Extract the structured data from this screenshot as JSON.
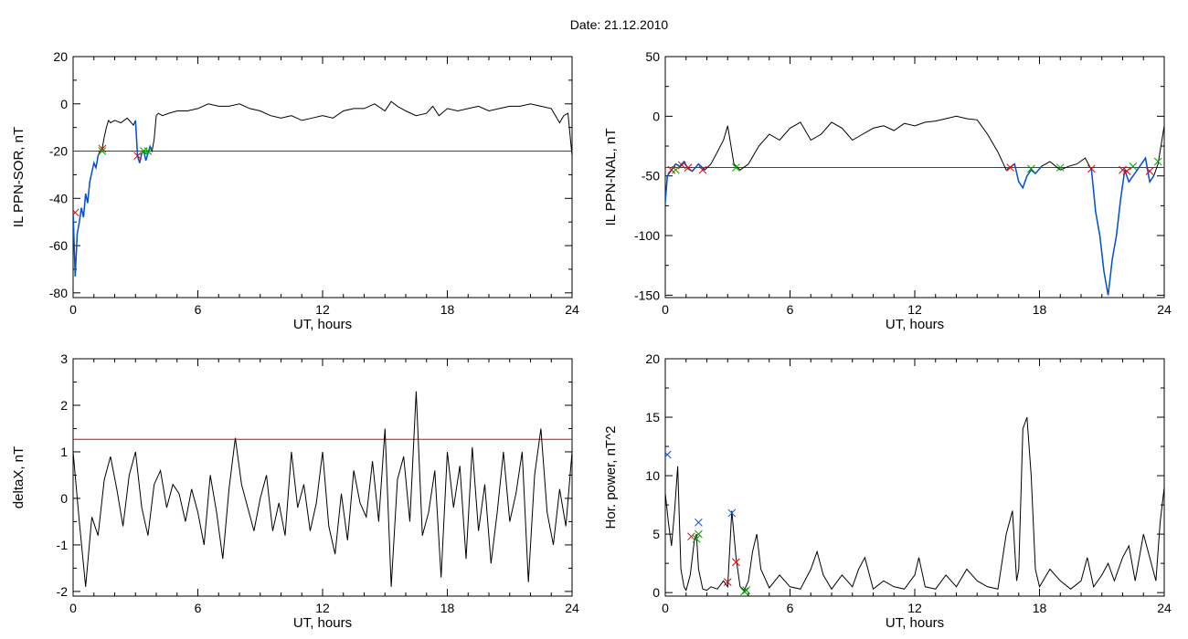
{
  "figure": {
    "title": "Date:  21.12.2010"
  },
  "colors": {
    "threshold": "#e00000",
    "trace": "#000000",
    "highlight": "#0050e0",
    "marker_red": "#e00000",
    "marker_green": "#00a000",
    "marker_blue": "#0050e0"
  },
  "chart_data": [
    {
      "type": "line",
      "ylabel": "IL PPN-SOR, nT",
      "xlabel": "UT, hours",
      "xlim": [
        0,
        24
      ],
      "ylim": [
        -82,
        20
      ],
      "xticks": [
        "0",
        "6",
        "12",
        "18",
        "24"
      ],
      "xtick_values": [
        0,
        6,
        12,
        18,
        24
      ],
      "yticks": [
        "20",
        "0",
        "-20",
        "-40",
        "-60",
        "-80"
      ],
      "ytick_values": [
        20,
        0,
        -20,
        -40,
        -60,
        -80
      ],
      "threshold": -20,
      "series": [
        {
          "values_x": [
            0,
            0.1,
            0.2,
            0.3,
            0.4,
            0.5,
            0.6,
            0.7,
            0.8,
            0.9,
            1.0,
            1.1,
            1.2,
            1.3,
            1.4,
            1.5,
            1.6,
            1.7,
            1.8,
            2.0,
            2.3,
            2.6,
            2.9,
            3.0,
            3.1,
            3.2,
            3.3,
            3.4,
            3.5,
            3.6,
            3.7,
            3.8,
            3.9,
            4.0,
            4.1,
            4.3,
            4.6,
            5,
            5.5,
            6,
            6.5,
            7,
            7.5,
            8,
            8.5,
            9,
            9.5,
            10,
            10.5,
            11,
            11.5,
            12,
            12.5,
            13,
            13.5,
            14,
            14.5,
            15,
            15.3,
            15.6,
            16,
            16.5,
            17,
            17.3,
            17.6,
            18,
            18.5,
            19,
            19.5,
            20,
            20.5,
            21,
            21.5,
            22,
            22.5,
            23,
            23.2,
            23.4,
            23.6,
            23.8,
            24
          ],
          "values_y": [
            -46,
            -73,
            -55,
            -50,
            -44,
            -48,
            -38,
            -42,
            -33,
            -29,
            -25,
            -27,
            -22,
            -20,
            -19,
            -14,
            -10,
            -7,
            -8,
            -7,
            -8,
            -6,
            -9,
            -7,
            -22,
            -25,
            -21,
            -20,
            -24,
            -21,
            -18,
            -20,
            -15,
            -5,
            -4,
            -5,
            -4,
            -3,
            -3,
            -2,
            0,
            -1,
            -1,
            0,
            -2,
            -3,
            -5,
            -6,
            -5,
            -7,
            -6,
            -5,
            -6,
            -3,
            -2,
            -2,
            0,
            -3,
            1,
            -1,
            -3,
            -5,
            -4,
            -1,
            -5,
            -2,
            -3,
            -2,
            -1,
            -3,
            -2,
            -1,
            -1,
            0,
            -1,
            -2,
            -5,
            -8,
            -5,
            -4,
            -22
          ]
        }
      ],
      "highlights": [
        {
          "x": [
            0,
            0.1,
            0.2,
            0.3,
            0.4,
            0.5,
            0.6,
            0.7,
            0.8,
            0.9,
            1.0,
            1.1,
            1.2,
            1.3,
            1.4
          ],
          "y": [
            -46,
            -73,
            -55,
            -50,
            -44,
            -48,
            -38,
            -42,
            -33,
            -29,
            -25,
            -27,
            -22,
            -20,
            -19
          ]
        },
        {
          "x": [
            3.0,
            3.1,
            3.2,
            3.3,
            3.4,
            3.5,
            3.6,
            3.7,
            3.8
          ],
          "y": [
            -7,
            -22,
            -25,
            -21,
            -20,
            -24,
            -21,
            -18,
            -20
          ]
        }
      ],
      "markers": [
        {
          "x": 0.1,
          "y": -46,
          "color": "red"
        },
        {
          "x": 1.4,
          "y": -19,
          "color": "red"
        },
        {
          "x": 1.4,
          "y": -20,
          "color": "green"
        },
        {
          "x": 3.1,
          "y": -22,
          "color": "red"
        },
        {
          "x": 3.4,
          "y": -20,
          "color": "green"
        },
        {
          "x": 3.6,
          "y": -20,
          "color": "green"
        }
      ]
    },
    {
      "type": "line",
      "ylabel": "IL PPN-NAL, nT",
      "xlabel": "UT, hours",
      "xlim": [
        0,
        24
      ],
      "ylim": [
        -152,
        50
      ],
      "xticks": [
        "0",
        "6",
        "12",
        "18",
        "24"
      ],
      "xtick_values": [
        0,
        6,
        12,
        18,
        24
      ],
      "yticks": [
        "50",
        "0",
        "-50",
        "-100",
        "-150"
      ],
      "ytick_values": [
        50,
        0,
        -50,
        -100,
        -150
      ],
      "threshold": -43,
      "series": [
        {
          "values_x": [
            0,
            0.1,
            0.3,
            0.5,
            0.7,
            0.9,
            1.1,
            1.3,
            1.6,
            1.9,
            2.2,
            2.5,
            2.8,
            3.0,
            3.3,
            3.6,
            4.0,
            4.5,
            5,
            5.5,
            6,
            6.5,
            7,
            7.5,
            8,
            8.5,
            9,
            9.5,
            10,
            10.5,
            11,
            11.5,
            12,
            12.5,
            13,
            13.5,
            14,
            14.5,
            15,
            15.5,
            16,
            16.4,
            16.8,
            17.0,
            17.2,
            17.4,
            17.6,
            17.8,
            18.1,
            18.5,
            19,
            19.4,
            19.8,
            20.2,
            20.5,
            20.7,
            20.9,
            21.1,
            21.3,
            21.5,
            21.7,
            21.9,
            22.1,
            22.3,
            22.5,
            22.7,
            22.9,
            23.1,
            23.3,
            23.5,
            23.7,
            24
          ],
          "values_y": [
            -72,
            -50,
            -45,
            -40,
            -42,
            -38,
            -44,
            -46,
            -40,
            -45,
            -40,
            -30,
            -20,
            -8,
            -40,
            -45,
            -40,
            -25,
            -15,
            -20,
            -10,
            -5,
            -20,
            -15,
            -5,
            -10,
            -20,
            -15,
            -10,
            -8,
            -12,
            -6,
            -8,
            -5,
            -4,
            -2,
            0,
            -2,
            -3,
            -15,
            -30,
            -45,
            -40,
            -55,
            -60,
            -50,
            -45,
            -48,
            -42,
            -38,
            -45,
            -42,
            -40,
            -35,
            -45,
            -80,
            -100,
            -130,
            -150,
            -120,
            -100,
            -70,
            -45,
            -55,
            -50,
            -45,
            -40,
            -35,
            -55,
            -50,
            -40,
            -8
          ]
        }
      ],
      "highlights": [
        {
          "x": [
            0,
            0.1,
            0.3,
            0.5,
            0.7,
            0.9,
            1.1,
            1.3,
            1.6,
            1.9
          ],
          "y": [
            -72,
            -50,
            -45,
            -40,
            -42,
            -38,
            -44,
            -46,
            -40,
            -45
          ]
        },
        {
          "x": [
            16.4,
            16.8,
            17.0,
            17.2,
            17.4,
            17.6,
            17.8,
            18.1
          ],
          "y": [
            -45,
            -40,
            -55,
            -60,
            -50,
            -45,
            -48,
            -42
          ]
        },
        {
          "x": [
            20.5,
            20.7,
            20.9,
            21.1,
            21.3,
            21.5,
            21.7,
            21.9,
            22.1,
            22.3,
            22.5,
            22.7,
            22.9,
            23.1,
            23.3,
            23.5
          ],
          "y": [
            -45,
            -80,
            -100,
            -130,
            -150,
            -120,
            -100,
            -70,
            -45,
            -55,
            -50,
            -45,
            -40,
            -35,
            -55,
            -50
          ]
        }
      ],
      "markers": [
        {
          "x": 0.3,
          "y": -45,
          "color": "red"
        },
        {
          "x": 0.5,
          "y": -45,
          "color": "green"
        },
        {
          "x": 0.8,
          "y": -41,
          "color": "red"
        },
        {
          "x": 1.1,
          "y": -43,
          "color": "red"
        },
        {
          "x": 1.8,
          "y": -45,
          "color": "red"
        },
        {
          "x": 3.4,
          "y": -43,
          "color": "green"
        },
        {
          "x": 16.6,
          "y": -43,
          "color": "red"
        },
        {
          "x": 17.6,
          "y": -44,
          "color": "green"
        },
        {
          "x": 19.0,
          "y": -43,
          "color": "green"
        },
        {
          "x": 20.5,
          "y": -44,
          "color": "red"
        },
        {
          "x": 22.0,
          "y": -45,
          "color": "red"
        },
        {
          "x": 22.2,
          "y": -46,
          "color": "red"
        },
        {
          "x": 22.5,
          "y": -42,
          "color": "green"
        },
        {
          "x": 23.3,
          "y": -46,
          "color": "red"
        },
        {
          "x": 23.7,
          "y": -38,
          "color": "green"
        }
      ]
    },
    {
      "type": "line",
      "ylabel": "deltaX, nT",
      "xlabel": "UT, hours",
      "xlim": [
        0,
        24
      ],
      "ylim": [
        -2.1,
        3
      ],
      "xticks": [
        "0",
        "6",
        "12",
        "18",
        "24"
      ],
      "xtick_values": [
        0,
        6,
        12,
        18,
        24
      ],
      "yticks": [
        "3",
        "2",
        "1",
        "0",
        "-1",
        "-2"
      ],
      "ytick_values": [
        3,
        2,
        1,
        0,
        -1,
        -2
      ],
      "threshold": 1.27,
      "series": [
        {
          "values_x": [
            0,
            0.3,
            0.6,
            0.9,
            1.2,
            1.5,
            1.8,
            2.1,
            2.4,
            2.7,
            3.0,
            3.3,
            3.6,
            3.9,
            4.2,
            4.5,
            4.8,
            5.1,
            5.4,
            5.7,
            6.0,
            6.3,
            6.6,
            6.9,
            7.2,
            7.5,
            7.8,
            8.1,
            8.4,
            8.7,
            9.0,
            9.3,
            9.6,
            9.9,
            10.2,
            10.5,
            10.8,
            11.1,
            11.4,
            11.7,
            12.0,
            12.3,
            12.6,
            12.9,
            13.2,
            13.5,
            13.8,
            14.1,
            14.4,
            14.7,
            15.0,
            15.3,
            15.6,
            15.9,
            16.2,
            16.5,
            16.8,
            17.1,
            17.4,
            17.7,
            18.0,
            18.3,
            18.6,
            18.9,
            19.2,
            19.5,
            19.8,
            20.1,
            20.4,
            20.7,
            21.0,
            21.3,
            21.6,
            21.9,
            22.2,
            22.5,
            22.8,
            23.1,
            23.4,
            23.7,
            24.0
          ],
          "values_y": [
            1.0,
            -0.5,
            -1.9,
            -0.4,
            -0.8,
            0.4,
            0.9,
            0.2,
            -0.6,
            0.5,
            1.0,
            -0.2,
            -0.8,
            0.3,
            0.6,
            -0.2,
            0.3,
            0.1,
            -0.5,
            0.2,
            -0.3,
            -1.0,
            0.5,
            -0.3,
            -1.3,
            0.2,
            1.3,
            0.3,
            -0.2,
            -0.7,
            0.0,
            0.5,
            -0.7,
            -0.1,
            -0.8,
            1.0,
            -0.2,
            0.3,
            -0.7,
            -0.1,
            1.0,
            -0.6,
            -1.2,
            0.1,
            -0.9,
            0.6,
            -0.1,
            -0.4,
            0.8,
            -0.5,
            1.5,
            -1.9,
            0.4,
            0.9,
            -0.5,
            2.3,
            -0.8,
            -0.3,
            0.6,
            -1.7,
            1.0,
            -0.2,
            0.7,
            -1.3,
            1.1,
            -0.7,
            0.3,
            -1.4,
            -0.3,
            1.0,
            -0.5,
            0.1,
            1.0,
            -1.8,
            0.5,
            1.5,
            -0.3,
            -1.0,
            0.2,
            -0.6,
            1.0
          ]
        }
      ],
      "highlights": [],
      "markers": []
    },
    {
      "type": "line",
      "ylabel": "Hor. power, nT^2",
      "xlabel": "UT, hours",
      "xlim": [
        0,
        24
      ],
      "ylim": [
        -0.3,
        20
      ],
      "xticks": [
        "0",
        "6",
        "12",
        "18",
        "24"
      ],
      "xtick_values": [
        0,
        6,
        12,
        18,
        24
      ],
      "yticks": [
        "20",
        "15",
        "10",
        "5",
        "0"
      ],
      "ytick_values": [
        20,
        15,
        10,
        5,
        0
      ],
      "threshold": null,
      "series": [
        {
          "values_x": [
            0,
            0.15,
            0.3,
            0.45,
            0.6,
            0.75,
            0.9,
            1.0,
            1.2,
            1.4,
            1.5,
            1.6,
            1.8,
            2.0,
            2.2,
            2.5,
            2.8,
            3.0,
            3.2,
            3.4,
            3.6,
            3.8,
            4.0,
            4.2,
            4.4,
            4.6,
            5.0,
            5.5,
            6.0,
            6.5,
            7.0,
            7.3,
            7.6,
            8.0,
            8.5,
            9.0,
            9.3,
            9.6,
            10.0,
            10.5,
            11.0,
            11.5,
            12.0,
            12.2,
            12.5,
            13.0,
            13.5,
            14.0,
            14.5,
            15.0,
            15.5,
            16.0,
            16.4,
            16.7,
            16.9,
            17.0,
            17.2,
            17.4,
            17.6,
            17.8,
            18.0,
            18.5,
            19.0,
            19.5,
            20.0,
            20.3,
            20.6,
            21.0,
            21.3,
            21.6,
            22.0,
            22.3,
            22.6,
            23.0,
            23.3,
            23.6,
            23.8,
            24.0
          ],
          "values_y": [
            8.5,
            6,
            4,
            7,
            10.8,
            2,
            0.5,
            0.2,
            1.5,
            4.5,
            5,
            2,
            0.3,
            0.2,
            0.5,
            0.3,
            1,
            0.5,
            7,
            3,
            0.5,
            0.2,
            1,
            3.5,
            5,
            2,
            0.4,
            1.5,
            0.5,
            0.3,
            2,
            3.5,
            1.5,
            0.3,
            1.5,
            0.5,
            2,
            3,
            0.3,
            1,
            0.5,
            0.3,
            1.5,
            3,
            0.5,
            0.3,
            1.5,
            0.5,
            2,
            1,
            0.5,
            0.3,
            5,
            7,
            1,
            2,
            14,
            15,
            10,
            2,
            0.5,
            2,
            1,
            0.3,
            1,
            3,
            0.5,
            1.5,
            2.5,
            1,
            3,
            4,
            1,
            5,
            3,
            1,
            6,
            9
          ]
        }
      ],
      "highlights": [],
      "markers": [
        {
          "x": 0.1,
          "y": 11.8,
          "color": "blue"
        },
        {
          "x": 1.25,
          "y": 4.8,
          "color": "red"
        },
        {
          "x": 1.5,
          "y": 4.6,
          "color": "green"
        },
        {
          "x": 1.6,
          "y": 5.0,
          "color": "green"
        },
        {
          "x": 1.6,
          "y": 6.0,
          "color": "blue"
        },
        {
          "x": 3.0,
          "y": 0.9,
          "color": "red"
        },
        {
          "x": 3.2,
          "y": 6.8,
          "color": "blue"
        },
        {
          "x": 3.4,
          "y": 2.6,
          "color": "red"
        },
        {
          "x": 3.8,
          "y": 0.1,
          "color": "green"
        },
        {
          "x": 3.9,
          "y": 0.2,
          "color": "green"
        }
      ]
    }
  ]
}
